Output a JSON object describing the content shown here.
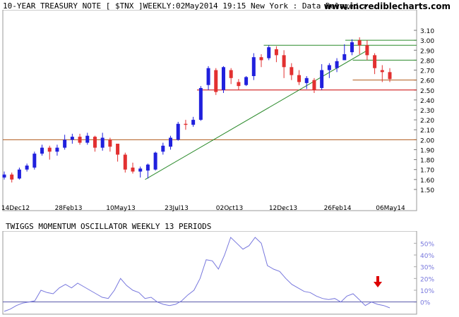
{
  "header": {
    "title": "10-YEAR TREASURY NOTE [ $TNX ]WEEKLY:02May2014 19:15 New York : Data Delayed >..",
    "site": "www.incrediblecharts.com"
  },
  "colors": {
    "up": "#2020dd",
    "down": "#e23030",
    "trendline": "#2a8a2a",
    "support": "#cc0000",
    "level2": "#b05a1a",
    "oscillator": "#7777dd",
    "arrow": "#dd0000"
  },
  "chart_data": [
    {
      "type": "candlestick",
      "title": "10-YEAR TREASURY NOTE [ $TNX ]WEEKLY:02May2014 19:15 New York : Data Delayed >..",
      "x_tick_labels": [
        "14Dec12",
        "28Feb13",
        "10May13",
        "23Jul13",
        "02Oct13",
        "12Dec13",
        "26Feb14",
        "06May14"
      ],
      "y_tick_labels": [
        "1.50",
        "1.60",
        "1.70",
        "1.80",
        "1.90",
        "2.00",
        "2.10",
        "2.20",
        "2.30",
        "2.40",
        "2.50",
        "2.60",
        "2.70",
        "2.80",
        "2.90",
        "3.00",
        "3.10"
      ],
      "ylim": [
        1.45,
        3.15
      ],
      "weeks": 52,
      "candles": [
        {
          "o": 1.62,
          "c": 1.65,
          "h": 1.68,
          "l": 1.6
        },
        {
          "o": 1.65,
          "c": 1.6,
          "h": 1.67,
          "l": 1.57
        },
        {
          "o": 1.61,
          "c": 1.7,
          "h": 1.72,
          "l": 1.6
        },
        {
          "o": 1.7,
          "c": 1.74,
          "h": 1.76,
          "l": 1.68
        },
        {
          "o": 1.72,
          "c": 1.86,
          "h": 1.88,
          "l": 1.7
        },
        {
          "o": 1.86,
          "c": 1.92,
          "h": 1.95,
          "l": 1.84
        },
        {
          "o": 1.92,
          "c": 1.88,
          "h": 1.94,
          "l": 1.8
        },
        {
          "o": 1.88,
          "c": 1.92,
          "h": 1.95,
          "l": 1.84
        },
        {
          "o": 1.92,
          "c": 2.0,
          "h": 2.05,
          "l": 1.9
        },
        {
          "o": 2.0,
          "c": 2.03,
          "h": 2.06,
          "l": 1.96
        },
        {
          "o": 2.03,
          "c": 1.97,
          "h": 2.06,
          "l": 1.95
        },
        {
          "o": 1.97,
          "c": 2.04,
          "h": 2.07,
          "l": 1.95
        },
        {
          "o": 2.03,
          "c": 1.92,
          "h": 2.04,
          "l": 1.88
        },
        {
          "o": 1.92,
          "c": 2.02,
          "h": 2.07,
          "l": 1.89
        },
        {
          "o": 2.0,
          "c": 1.93,
          "h": 2.02,
          "l": 1.88
        },
        {
          "o": 1.96,
          "c": 1.85,
          "h": 1.96,
          "l": 1.78
        },
        {
          "o": 1.85,
          "c": 1.7,
          "h": 1.87,
          "l": 1.67
        },
        {
          "o": 1.72,
          "c": 1.68,
          "h": 1.77,
          "l": 1.66
        },
        {
          "o": 1.68,
          "c": 1.71,
          "h": 1.73,
          "l": 1.62
        },
        {
          "o": 1.69,
          "c": 1.75,
          "h": 1.76,
          "l": 1.61
        },
        {
          "o": 1.7,
          "c": 1.87,
          "h": 1.88,
          "l": 1.69
        },
        {
          "o": 1.88,
          "c": 1.94,
          "h": 1.97,
          "l": 1.85
        },
        {
          "o": 1.93,
          "c": 2.02,
          "h": 2.04,
          "l": 1.9
        },
        {
          "o": 2.0,
          "c": 2.16,
          "h": 2.18,
          "l": 1.99
        },
        {
          "o": 2.16,
          "c": 2.15,
          "h": 2.2,
          "l": 2.1
        },
        {
          "o": 2.15,
          "c": 2.2,
          "h": 2.23,
          "l": 2.13
        },
        {
          "o": 2.2,
          "c": 2.52,
          "h": 2.54,
          "l": 2.19
        },
        {
          "o": 2.55,
          "c": 2.72,
          "h": 2.74,
          "l": 2.5
        },
        {
          "o": 2.7,
          "c": 2.48,
          "h": 2.72,
          "l": 2.45
        },
        {
          "o": 2.5,
          "c": 2.73,
          "h": 2.74,
          "l": 2.47
        },
        {
          "o": 2.7,
          "c": 2.62,
          "h": 2.72,
          "l": 2.56
        },
        {
          "o": 2.58,
          "c": 2.54,
          "h": 2.61,
          "l": 2.5
        },
        {
          "o": 2.55,
          "c": 2.63,
          "h": 2.64,
          "l": 2.54
        },
        {
          "o": 2.64,
          "c": 2.83,
          "h": 2.87,
          "l": 2.6
        },
        {
          "o": 2.83,
          "c": 2.8,
          "h": 2.86,
          "l": 2.73
        },
        {
          "o": 2.82,
          "c": 2.93,
          "h": 2.95,
          "l": 2.8
        },
        {
          "o": 2.91,
          "c": 2.85,
          "h": 2.94,
          "l": 2.78
        },
        {
          "o": 2.85,
          "c": 2.73,
          "h": 2.9,
          "l": 2.62
        },
        {
          "o": 2.73,
          "c": 2.65,
          "h": 2.77,
          "l": 2.6
        },
        {
          "o": 2.65,
          "c": 2.58,
          "h": 2.7,
          "l": 2.55
        },
        {
          "o": 2.57,
          "c": 2.62,
          "h": 2.64,
          "l": 2.51
        },
        {
          "o": 2.6,
          "c": 2.5,
          "h": 2.62,
          "l": 2.47
        },
        {
          "o": 2.52,
          "c": 2.7,
          "h": 2.76,
          "l": 2.5
        },
        {
          "o": 2.7,
          "c": 2.75,
          "h": 2.77,
          "l": 2.62
        },
        {
          "o": 2.72,
          "c": 2.79,
          "h": 2.82,
          "l": 2.68
        },
        {
          "o": 2.8,
          "c": 2.86,
          "h": 2.96,
          "l": 2.8
        },
        {
          "o": 2.88,
          "c": 2.98,
          "h": 3.01,
          "l": 2.85
        },
        {
          "o": 3.0,
          "c": 2.95,
          "h": 3.03,
          "l": 2.86
        },
        {
          "o": 2.95,
          "c": 2.85,
          "h": 3.0,
          "l": 2.8
        },
        {
          "o": 2.85,
          "c": 2.72,
          "h": 2.87,
          "l": 2.66
        },
        {
          "o": 2.7,
          "c": 2.68,
          "h": 2.75,
          "l": 2.58
        },
        {
          "o": 2.68,
          "c": 2.61,
          "h": 2.72,
          "l": 2.58
        }
      ],
      "lines": [
        {
          "kind": "horizontal",
          "value": 2.0,
          "color": "#b05a1a",
          "from_week": 0,
          "to_week": 52
        },
        {
          "kind": "horizontal",
          "value": 2.5,
          "color": "#cc0000",
          "from_week": 26,
          "to_week": 52
        },
        {
          "kind": "horizontal",
          "value": 2.6,
          "color": "#b05a1a",
          "from_week": 47,
          "to_week": 52
        },
        {
          "kind": "horizontal",
          "value": 2.8,
          "color": "#2a8a2a",
          "from_week": 47,
          "to_week": 52
        },
        {
          "kind": "horizontal",
          "value": 2.95,
          "color": "#2a8a2a",
          "from_week": 35,
          "to_week": 52
        },
        {
          "kind": "horizontal",
          "value": 3.0,
          "color": "#2a8a2a",
          "from_week": 46,
          "to_week": 52
        },
        {
          "kind": "trend",
          "from": {
            "week": 19,
            "value": 1.6
          },
          "to": {
            "week": 49,
            "value": 2.9
          },
          "color": "#2a8a2a"
        }
      ]
    },
    {
      "type": "line",
      "title": "TWIGGS MOMENTUM OSCILLATOR WEEKLY 13 PERIODS",
      "y_tick_labels": [
        "0%",
        "10%",
        "20%",
        "30%",
        "40%",
        "50%"
      ],
      "ylim": [
        -8,
        58
      ],
      "series": [
        {
          "values": [
            -8,
            -6,
            -3,
            -1,
            0,
            1,
            10,
            8,
            7,
            12,
            15,
            12,
            16,
            13,
            10,
            7,
            4,
            3,
            10,
            20,
            14,
            10,
            8,
            3,
            4,
            0,
            -2,
            -3,
            -2,
            1,
            6,
            10,
            20,
            36,
            35,
            28,
            40,
            55,
            50,
            45,
            48,
            55,
            50,
            31,
            28,
            26,
            20,
            15,
            12,
            9,
            8,
            5,
            3,
            2,
            3,
            0,
            5,
            7,
            2,
            -3,
            0,
            -2,
            -3,
            -5
          ]
        }
      ],
      "zero_line": 0,
      "annotation": "down-arrow"
    }
  ]
}
